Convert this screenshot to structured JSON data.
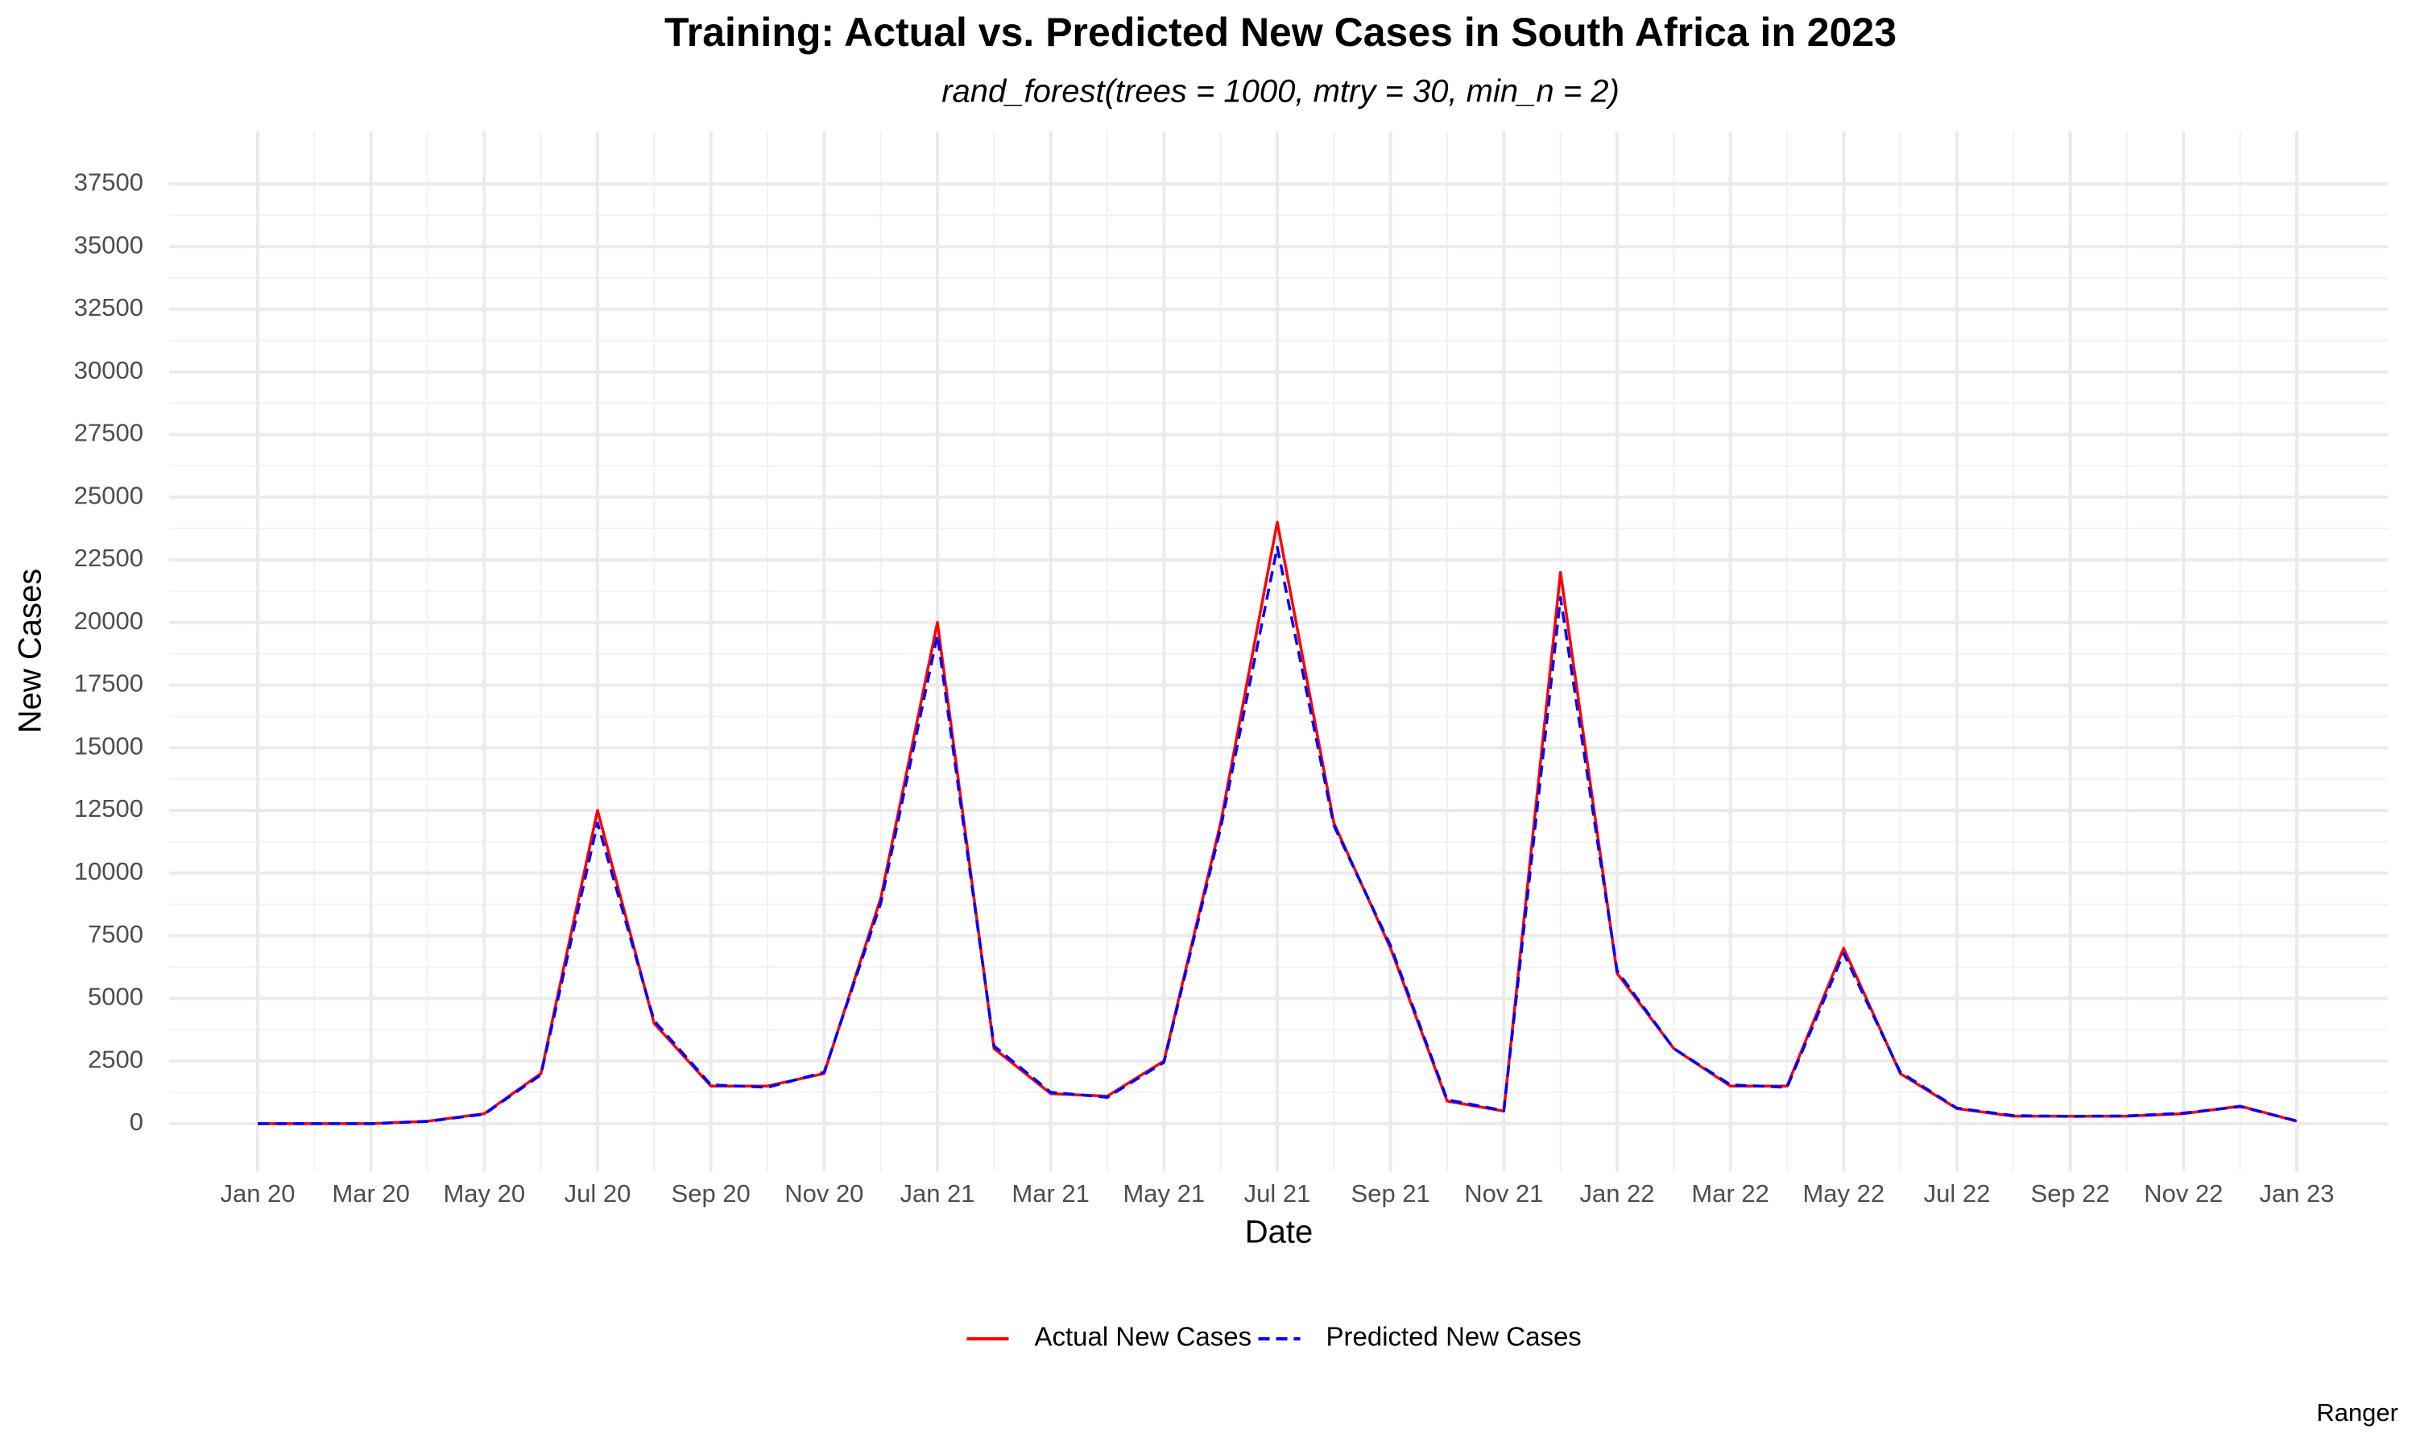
{
  "chart_data": {
    "type": "line",
    "title": "Training: Actual vs. Predicted New Cases in South Africa in 2023",
    "subtitle": "rand_forest(trees = 1000, mtry = 30, min_n = 2)",
    "x_label": "Date",
    "y_label": "New Cases",
    "caption": "Ranger",
    "x": [
      "2020-01",
      "2020-02",
      "2020-03",
      "2020-04",
      "2020-05",
      "2020-06",
      "2020-07",
      "2020-08",
      "2020-09",
      "2020-10",
      "2020-11",
      "2020-12",
      "2021-01",
      "2021-02",
      "2021-03",
      "2021-04",
      "2021-05",
      "2021-06",
      "2021-07",
      "2021-08",
      "2021-09",
      "2021-10",
      "2021-11",
      "2021-12",
      "2022-01",
      "2022-02",
      "2022-03",
      "2022-04",
      "2022-05",
      "2022-06",
      "2022-07",
      "2022-08",
      "2022-09",
      "2022-10",
      "2022-11",
      "2022-12",
      "2023-01"
    ],
    "series": [
      {
        "name": "Actual New Cases",
        "color": "#ff0000",
        "dash": false,
        "values": [
          0,
          0,
          0,
          100,
          400,
          2000,
          12500,
          4000,
          1500,
          1500,
          2000,
          9000,
          20000,
          3000,
          1200,
          1100,
          2500,
          12000,
          24000,
          12000,
          7000,
          900,
          500,
          22000,
          6000,
          3000,
          1500,
          1500,
          7000,
          2000,
          600,
          300,
          300,
          300,
          400,
          700,
          100
        ]
      },
      {
        "name": "Predicted New Cases",
        "color": "#0000ff",
        "dash": true,
        "values": [
          0,
          0,
          0,
          90,
          380,
          1950,
          12000,
          4100,
          1550,
          1450,
          2050,
          8800,
          19500,
          3100,
          1250,
          1050,
          2450,
          11800,
          23000,
          11900,
          7100,
          950,
          520,
          21000,
          6100,
          3000,
          1550,
          1450,
          6800,
          2050,
          620,
          320,
          290,
          310,
          420,
          680,
          110
        ]
      }
    ],
    "xticks": [
      {
        "value": "2020-01",
        "label": "Jan 20"
      },
      {
        "value": "2020-03",
        "label": "Mar 20"
      },
      {
        "value": "2020-05",
        "label": "May 20"
      },
      {
        "value": "2020-07",
        "label": "Jul 20"
      },
      {
        "value": "2020-09",
        "label": "Sep 20"
      },
      {
        "value": "2020-11",
        "label": "Nov 20"
      },
      {
        "value": "2021-01",
        "label": "Jan 21"
      },
      {
        "value": "2021-03",
        "label": "Mar 21"
      },
      {
        "value": "2021-05",
        "label": "May 21"
      },
      {
        "value": "2021-07",
        "label": "Jul 21"
      },
      {
        "value": "2021-09",
        "label": "Sep 21"
      },
      {
        "value": "2021-11",
        "label": "Nov 21"
      },
      {
        "value": "2022-01",
        "label": "Jan 22"
      },
      {
        "value": "2022-03",
        "label": "Mar 22"
      },
      {
        "value": "2022-05",
        "label": "May 22"
      },
      {
        "value": "2022-07",
        "label": "Jul 22"
      },
      {
        "value": "2022-09",
        "label": "Sep 22"
      },
      {
        "value": "2022-11",
        "label": "Nov 22"
      },
      {
        "value": "2023-01",
        "label": "Jan 23"
      }
    ],
    "ylim": [
      -1900,
      39600
    ],
    "yticks": [
      0,
      2500,
      5000,
      7500,
      10000,
      12500,
      15000,
      17500,
      20000,
      22500,
      25000,
      27500,
      30000,
      32500,
      35000,
      37500
    ],
    "grid": true,
    "legend": "bottom"
  }
}
